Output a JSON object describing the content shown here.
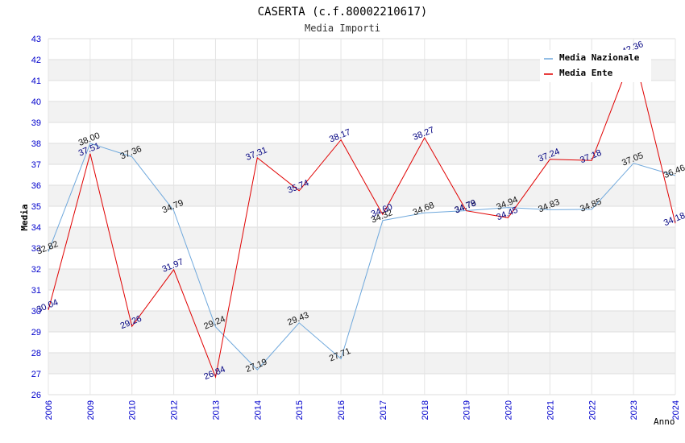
{
  "chart_data": {
    "type": "line",
    "title": "CASERTA (c.f.80002210617)",
    "subtitle": "Media Importi",
    "xlabel": "Anno",
    "ylabel": "Media",
    "ylim": [
      26,
      43
    ],
    "yticks": [
      "26",
      "27",
      "28",
      "29",
      "30",
      "31",
      "32",
      "33",
      "34",
      "35",
      "36",
      "37",
      "38",
      "39",
      "40",
      "41",
      "42",
      "43"
    ],
    "categories": [
      "2006",
      "2009",
      "2010",
      "2012",
      "2013",
      "2014",
      "2015",
      "2016",
      "2017",
      "2018",
      "2019",
      "2020",
      "2021",
      "2022",
      "2023",
      "2024"
    ],
    "legend_position": "top-right",
    "grid": true,
    "series": [
      {
        "name": "Media Nazionale",
        "color": "#6fa8dc",
        "label_color": "#111111",
        "values": [
          32.82,
          38.0,
          37.36,
          34.79,
          29.24,
          27.19,
          29.43,
          27.71,
          34.32,
          34.68,
          34.79,
          34.94,
          34.83,
          34.85,
          37.05,
          36.46
        ],
        "labels": [
          "32.82",
          "38.00",
          "37.36",
          "34.79",
          "29.24",
          "27.19",
          "29.43",
          "27.71",
          "34.32",
          "34.68",
          "34.79",
          "34.94",
          "34.83",
          "34.85",
          "37.05",
          "36.46"
        ]
      },
      {
        "name": "Media Ente",
        "color": "#e00000",
        "label_color": "#000080",
        "values": [
          30.04,
          37.51,
          29.26,
          31.97,
          26.84,
          37.31,
          35.74,
          38.17,
          34.6,
          38.27,
          34.78,
          34.45,
          37.24,
          37.18,
          42.36,
          34.18
        ],
        "labels": [
          "30.04",
          "37.51",
          "29.26",
          "31.97",
          "26.84",
          "37.31",
          "35.74",
          "38.17",
          "34.60",
          "38.27",
          "34.78",
          "34.45",
          "37.24",
          "37.18",
          "42.36",
          "34.18"
        ]
      }
    ]
  }
}
